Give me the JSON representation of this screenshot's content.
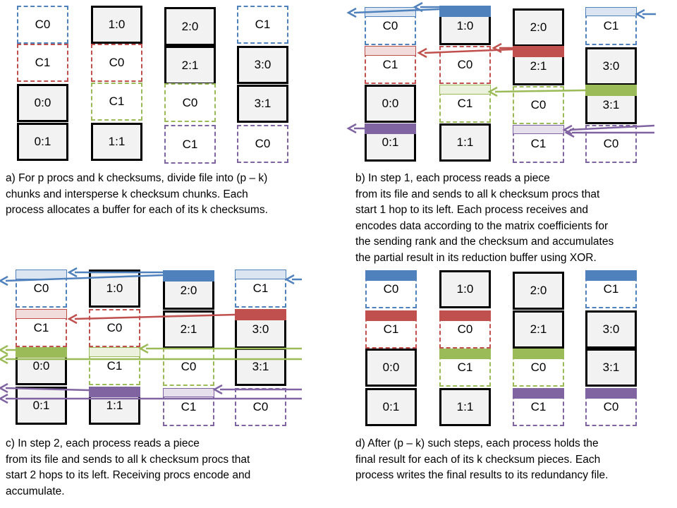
{
  "colors": {
    "blue": "#4f81bd",
    "red": "#c0504d",
    "green": "#9bbb59",
    "purple": "#8064a2",
    "blue_light": "#dbe5f1",
    "red_light": "#f2dcdb",
    "green_light": "#ebf1dd",
    "purple_light": "#e5e0ec",
    "data_fill": "#f2f2f2"
  },
  "panels": [
    {
      "id": "a",
      "columns": [
        [
          {
            "label": "C0",
            "kind": "checksum",
            "color": "blue"
          },
          {
            "label": "C1",
            "kind": "checksum",
            "color": "red"
          },
          {
            "label": "0:0",
            "kind": "data"
          },
          {
            "label": "0:1",
            "kind": "data"
          }
        ],
        [
          {
            "label": "1:0",
            "kind": "data"
          },
          {
            "label": "C0",
            "kind": "checksum",
            "color": "red"
          },
          {
            "label": "C1",
            "kind": "checksum",
            "color": "green"
          },
          {
            "label": "1:1",
            "kind": "data"
          }
        ],
        [
          {
            "label": "2:0",
            "kind": "data"
          },
          {
            "label": "2:1",
            "kind": "data"
          },
          {
            "label": "C0",
            "kind": "checksum",
            "color": "green"
          },
          {
            "label": "C1",
            "kind": "checksum",
            "color": "purple"
          }
        ],
        [
          {
            "label": "C1",
            "kind": "checksum",
            "color": "blue"
          },
          {
            "label": "3:0",
            "kind": "data"
          },
          {
            "label": "3:1",
            "kind": "data"
          },
          {
            "label": "C0",
            "kind": "checksum",
            "color": "purple"
          }
        ]
      ],
      "caption": "a) For p procs and k checksums, divide file into (p – k)\nchunks and intersperse k checksum chunks.  Each\nprocess allocates a buffer for each of its k checksums."
    },
    {
      "id": "b",
      "columns": [
        [
          {
            "label": "C0",
            "kind": "checksum",
            "color": "blue"
          },
          {
            "label": "C1",
            "kind": "checksum",
            "color": "red"
          },
          {
            "label": "0:0",
            "kind": "data"
          },
          {
            "label": "0:1",
            "kind": "data"
          }
        ],
        [
          {
            "label": "1:0",
            "kind": "data"
          },
          {
            "label": "C0",
            "kind": "checksum",
            "color": "red"
          },
          {
            "label": "C1",
            "kind": "checksum",
            "color": "green"
          },
          {
            "label": "1:1",
            "kind": "data"
          }
        ],
        [
          {
            "label": "2:0",
            "kind": "data"
          },
          {
            "label": "2:1",
            "kind": "data"
          },
          {
            "label": "C0",
            "kind": "checksum",
            "color": "green"
          },
          {
            "label": "C1",
            "kind": "checksum",
            "color": "purple"
          }
        ],
        [
          {
            "label": "C1",
            "kind": "checksum",
            "color": "blue"
          },
          {
            "label": "3:0",
            "kind": "data"
          },
          {
            "label": "3:1",
            "kind": "data"
          },
          {
            "label": "C0",
            "kind": "checksum",
            "color": "purple"
          }
        ]
      ],
      "caption": "b) In step 1, each process reads a piece\nfrom its file and sends to all k checksum procs that\nstart 1 hop to its left.  Each process receives and\nencodes data according to the matrix coefficients for\nthe sending rank and the checksum and accumulates\nthe partial result in its reduction buffer using XOR."
    },
    {
      "id": "c",
      "columns": [
        [
          {
            "label": "C0",
            "kind": "checksum",
            "color": "blue"
          },
          {
            "label": "C1",
            "kind": "checksum",
            "color": "red"
          },
          {
            "label": "0:0",
            "kind": "data"
          },
          {
            "label": "0:1",
            "kind": "data"
          }
        ],
        [
          {
            "label": "1:0",
            "kind": "data"
          },
          {
            "label": "C0",
            "kind": "checksum",
            "color": "red"
          },
          {
            "label": "C1",
            "kind": "checksum",
            "color": "green"
          },
          {
            "label": "1:1",
            "kind": "data"
          }
        ],
        [
          {
            "label": "2:0",
            "kind": "data"
          },
          {
            "label": "2:1",
            "kind": "data"
          },
          {
            "label": "C0",
            "kind": "checksum",
            "color": "green"
          },
          {
            "label": "C1",
            "kind": "checksum",
            "color": "purple"
          }
        ],
        [
          {
            "label": "C1",
            "kind": "checksum",
            "color": "blue"
          },
          {
            "label": "3:0",
            "kind": "data"
          },
          {
            "label": "3:1",
            "kind": "data"
          },
          {
            "label": "C0",
            "kind": "checksum",
            "color": "purple"
          }
        ]
      ],
      "caption": "c) In step 2, each process reads a piece\nfrom its file and sends to all k checksum procs that\nstart 2 hops to its left.  Receiving procs encode and\naccumulate."
    },
    {
      "id": "d",
      "columns": [
        [
          {
            "label": "C0",
            "kind": "checksum",
            "color": "blue"
          },
          {
            "label": "C1",
            "kind": "checksum",
            "color": "red"
          },
          {
            "label": "0:0",
            "kind": "data"
          },
          {
            "label": "0:1",
            "kind": "data"
          }
        ],
        [
          {
            "label": "1:0",
            "kind": "data"
          },
          {
            "label": "C0",
            "kind": "checksum",
            "color": "red"
          },
          {
            "label": "C1",
            "kind": "checksum",
            "color": "green"
          },
          {
            "label": "1:1",
            "kind": "data"
          }
        ],
        [
          {
            "label": "2:0",
            "kind": "data"
          },
          {
            "label": "2:1",
            "kind": "data"
          },
          {
            "label": "C0",
            "kind": "checksum",
            "color": "green"
          },
          {
            "label": "C1",
            "kind": "checksum",
            "color": "purple"
          }
        ],
        [
          {
            "label": "C1",
            "kind": "checksum",
            "color": "blue"
          },
          {
            "label": "3:0",
            "kind": "data"
          },
          {
            "label": "3:1",
            "kind": "data"
          },
          {
            "label": "C0",
            "kind": "checksum",
            "color": "purple"
          }
        ]
      ],
      "caption": "d) After (p – k) such steps, each process holds the\nfinal result for each of its k checksum pieces.  Each\nprocess writes the final results to its redundancy file."
    }
  ]
}
